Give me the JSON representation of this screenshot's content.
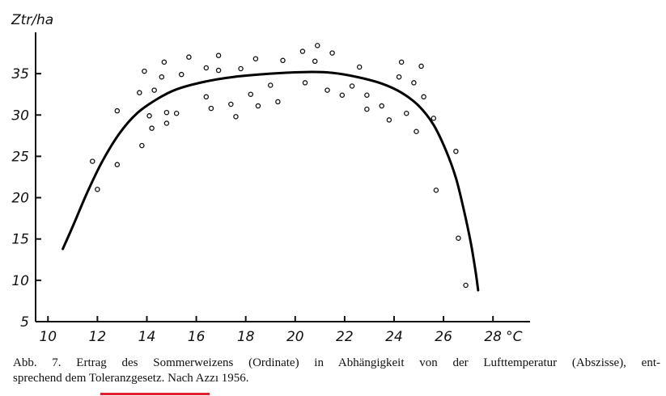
{
  "chart_data": {
    "type": "scatter",
    "ylabel": "Ztr/ha",
    "x_unit_label": "°C",
    "xlim": [
      9.5,
      29.5
    ],
    "ylim": [
      5,
      40
    ],
    "x_ticks": [
      10,
      12,
      14,
      16,
      18,
      20,
      22,
      24,
      26,
      28
    ],
    "y_ticks": [
      5,
      10,
      15,
      20,
      25,
      30,
      35
    ],
    "grid": false,
    "points": [
      {
        "x": 11.8,
        "y": 24.4
      },
      {
        "x": 12.0,
        "y": 21.0
      },
      {
        "x": 12.8,
        "y": 30.5
      },
      {
        "x": 12.8,
        "y": 24.0
      },
      {
        "x": 13.7,
        "y": 32.7
      },
      {
        "x": 13.8,
        "y": 26.3
      },
      {
        "x": 13.9,
        "y": 35.3
      },
      {
        "x": 14.1,
        "y": 29.9
      },
      {
        "x": 14.2,
        "y": 28.4
      },
      {
        "x": 14.3,
        "y": 33.0
      },
      {
        "x": 14.6,
        "y": 34.6
      },
      {
        "x": 14.7,
        "y": 36.4
      },
      {
        "x": 14.8,
        "y": 30.3
      },
      {
        "x": 14.8,
        "y": 29.0
      },
      {
        "x": 15.2,
        "y": 30.2
      },
      {
        "x": 15.4,
        "y": 34.9
      },
      {
        "x": 15.7,
        "y": 37.0
      },
      {
        "x": 16.4,
        "y": 35.7
      },
      {
        "x": 16.4,
        "y": 32.2
      },
      {
        "x": 16.6,
        "y": 30.8
      },
      {
        "x": 16.9,
        "y": 37.2
      },
      {
        "x": 16.9,
        "y": 35.4
      },
      {
        "x": 17.4,
        "y": 31.3
      },
      {
        "x": 17.6,
        "y": 29.8
      },
      {
        "x": 17.8,
        "y": 35.6
      },
      {
        "x": 18.2,
        "y": 32.5
      },
      {
        "x": 18.4,
        "y": 36.8
      },
      {
        "x": 18.5,
        "y": 31.1
      },
      {
        "x": 19.0,
        "y": 33.6
      },
      {
        "x": 19.3,
        "y": 31.6
      },
      {
        "x": 19.5,
        "y": 36.6
      },
      {
        "x": 20.3,
        "y": 37.7
      },
      {
        "x": 20.4,
        "y": 33.9
      },
      {
        "x": 20.8,
        "y": 36.5
      },
      {
        "x": 20.9,
        "y": 38.4
      },
      {
        "x": 21.3,
        "y": 33.0
      },
      {
        "x": 21.5,
        "y": 37.5
      },
      {
        "x": 21.9,
        "y": 32.4
      },
      {
        "x": 22.3,
        "y": 33.5
      },
      {
        "x": 22.6,
        "y": 35.8
      },
      {
        "x": 22.9,
        "y": 32.4
      },
      {
        "x": 22.9,
        "y": 30.7
      },
      {
        "x": 23.5,
        "y": 31.1
      },
      {
        "x": 23.8,
        "y": 29.4
      },
      {
        "x": 24.2,
        "y": 34.6
      },
      {
        "x": 24.3,
        "y": 36.4
      },
      {
        "x": 24.5,
        "y": 30.2
      },
      {
        "x": 24.8,
        "y": 33.9
      },
      {
        "x": 24.9,
        "y": 28.0
      },
      {
        "x": 25.1,
        "y": 35.9
      },
      {
        "x": 25.2,
        "y": 32.2
      },
      {
        "x": 25.6,
        "y": 29.6
      },
      {
        "x": 25.7,
        "y": 20.9
      },
      {
        "x": 26.5,
        "y": 25.6
      },
      {
        "x": 26.6,
        "y": 15.1
      },
      {
        "x": 26.9,
        "y": 9.4
      }
    ],
    "fitted_curve": [
      {
        "x": 10.6,
        "y": 13.8
      },
      {
        "x": 11.0,
        "y": 16.5
      },
      {
        "x": 11.6,
        "y": 20.7
      },
      {
        "x": 12.2,
        "y": 24.4
      },
      {
        "x": 12.9,
        "y": 27.8
      },
      {
        "x": 13.6,
        "y": 30.2
      },
      {
        "x": 14.4,
        "y": 31.9
      },
      {
        "x": 15.2,
        "y": 33.1
      },
      {
        "x": 16.3,
        "y": 34.0
      },
      {
        "x": 17.5,
        "y": 34.6
      },
      {
        "x": 19.0,
        "y": 35.0
      },
      {
        "x": 20.5,
        "y": 35.2
      },
      {
        "x": 21.5,
        "y": 35.1
      },
      {
        "x": 22.5,
        "y": 34.6
      },
      {
        "x": 23.5,
        "y": 33.8
      },
      {
        "x": 24.3,
        "y": 32.7
      },
      {
        "x": 25.0,
        "y": 31.1
      },
      {
        "x": 25.6,
        "y": 28.8
      },
      {
        "x": 26.1,
        "y": 25.7
      },
      {
        "x": 26.5,
        "y": 22.4
      },
      {
        "x": 26.8,
        "y": 18.8
      },
      {
        "x": 27.1,
        "y": 14.6
      },
      {
        "x": 27.3,
        "y": 11.0
      },
      {
        "x": 27.4,
        "y": 8.8
      }
    ]
  },
  "caption": {
    "line1": "Abb. 7. Ertrag des Sommerweizens (Ordinate) in Abhängigkeit von der Lufttemperatur (Abszisse), ent-",
    "line2_prefix": "sprechend dem ",
    "line2_highlight": "Toleranzgesetz",
    "line2_suffix": ". Nach Azzı 1956."
  },
  "colors": {
    "ink": "#111111",
    "highlight_underline": "#e0202a"
  }
}
